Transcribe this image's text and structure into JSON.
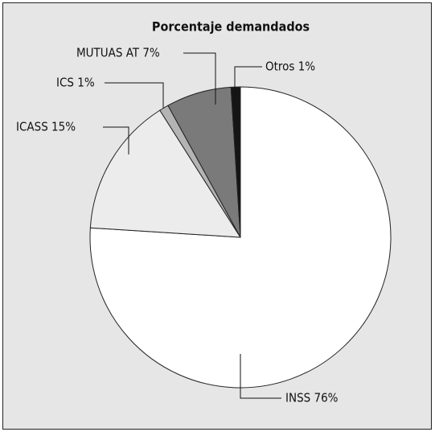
{
  "chart_data": {
    "type": "pie",
    "title": "Porcentaje demandados",
    "values": [
      76,
      15,
      1,
      7,
      1
    ],
    "value_labels": [
      "INSS 76%",
      "ICASS 15%",
      "ICS 1%",
      "MUTUAS AT 7%",
      "Otros 1%"
    ],
    "colors": [
      "#ffffff",
      "#ececec",
      "#b4b4b4",
      "#7a7a7a",
      "#151515"
    ]
  }
}
